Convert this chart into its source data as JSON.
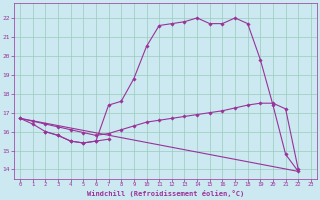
{
  "background_color": "#cce8f0",
  "grid_color": "#99ccbb",
  "line_color": "#993399",
  "xlabel": "Windchill (Refroidissement éolien,°C)",
  "ylabel_ticks": [
    14,
    15,
    16,
    17,
    18,
    19,
    20,
    21,
    22
  ],
  "xlim": [
    -0.5,
    23.5
  ],
  "ylim": [
    13.5,
    22.8
  ],
  "curve1_x": [
    0,
    1,
    2,
    3,
    4,
    5,
    6,
    7,
    8,
    9,
    10,
    11,
    12,
    13,
    14,
    15,
    16,
    17,
    18,
    19,
    20,
    21,
    22
  ],
  "curve1_y": [
    16.7,
    16.4,
    16.0,
    15.8,
    15.5,
    15.4,
    15.5,
    17.4,
    17.6,
    18.8,
    20.5,
    21.6,
    21.7,
    21.8,
    22.0,
    21.7,
    21.7,
    22.0,
    21.7,
    19.8,
    17.4,
    14.8,
    13.9
  ],
  "curve2_x": [
    0,
    1,
    2,
    3,
    4,
    5,
    6,
    7,
    8,
    9,
    10,
    11,
    12,
    13,
    14,
    15,
    16,
    17,
    18,
    19,
    20,
    21,
    22
  ],
  "curve2_y": [
    16.7,
    16.55,
    16.4,
    16.25,
    16.1,
    15.95,
    15.8,
    15.9,
    16.1,
    16.3,
    16.5,
    16.6,
    16.7,
    16.8,
    16.9,
    17.0,
    17.1,
    17.25,
    17.4,
    17.5,
    17.5,
    17.2,
    14.0
  ],
  "curve3_x": [
    2,
    3,
    4,
    5,
    6,
    7
  ],
  "curve3_y": [
    16.0,
    15.8,
    15.5,
    15.4,
    15.5,
    15.6
  ],
  "curve4_x": [
    0,
    22
  ],
  "curve4_y": [
    16.7,
    13.9
  ]
}
